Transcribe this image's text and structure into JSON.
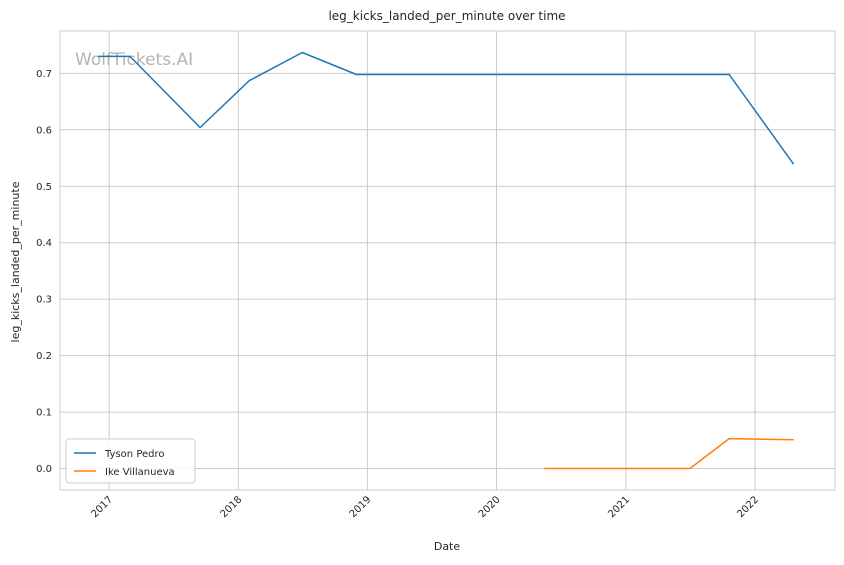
{
  "chart_data": {
    "type": "line",
    "title": "leg_kicks_landed_per_minute over time",
    "xlabel": "Date",
    "ylabel": "leg_kicks_landed_per_minute",
    "watermark": "WolfTickets.AI",
    "x_ticks": [
      "2017",
      "2018",
      "2019",
      "2020",
      "2021",
      "2022"
    ],
    "y_ticks": [
      "0.0",
      "0.1",
      "0.2",
      "0.3",
      "0.4",
      "0.5",
      "0.6",
      "0.7"
    ],
    "ylim": [
      -0.038,
      0.775
    ],
    "xlim": [
      "2016-08-15",
      "2022-08-15"
    ],
    "grid": true,
    "legend_position": "lower-left",
    "series": [
      {
        "name": "Tyson Pedro",
        "color": "#1f77b4",
        "points": [
          {
            "x": "2016-12-01",
            "y": 0.73
          },
          {
            "x": "2017-03-01",
            "y": 0.73
          },
          {
            "x": "2017-09-15",
            "y": 0.604
          },
          {
            "x": "2018-02-01",
            "y": 0.687
          },
          {
            "x": "2018-07-01",
            "y": 0.737
          },
          {
            "x": "2018-12-01",
            "y": 0.698
          },
          {
            "x": "2021-10-20",
            "y": 0.698
          },
          {
            "x": "2022-04-20",
            "y": 0.539
          }
        ]
      },
      {
        "name": "Ike Villanueva",
        "color": "#ff7f0e",
        "points": [
          {
            "x": "2020-05-15",
            "y": 0.0
          },
          {
            "x": "2021-07-01",
            "y": 0.0
          },
          {
            "x": "2021-10-20",
            "y": 0.053
          },
          {
            "x": "2022-04-20",
            "y": 0.051
          }
        ]
      }
    ]
  }
}
